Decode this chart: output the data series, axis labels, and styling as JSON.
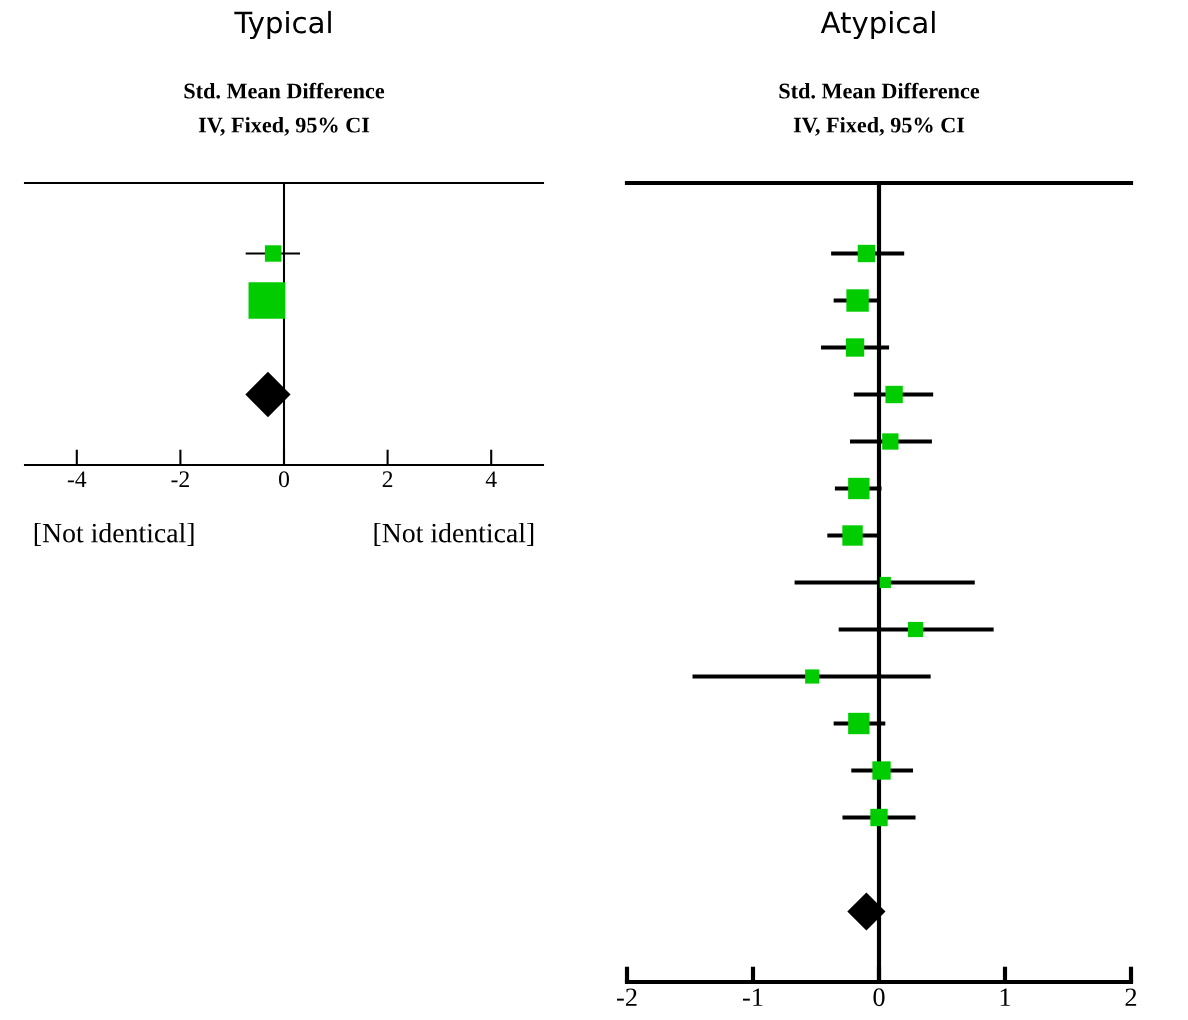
{
  "chart_data": [
    {
      "type": "scatter",
      "orientation": "horizontal",
      "title": "Typical",
      "subtitle": "Std. Mean Difference\nIV, Fixed, 95% CI",
      "categories": [
        null,
        null,
        null,
        null,
        null,
        null
      ],
      "xlim": [
        -5,
        5
      ],
      "xticks": [
        -4,
        -2,
        0,
        2,
        4
      ],
      "tick_labels": "x",
      "legend": false,
      "grid": false,
      "ref_lines": [
        {
          "axis": "x",
          "value": 0,
          "color": "#000000"
        }
      ],
      "annotations": [
        "[Not identical]",
        "[Not identical]"
      ],
      "series": [
        {
          "type": "bubble",
          "marker": "square",
          "color": "#00cc00",
          "values": [
            null,
            -0.21,
            -0.33,
            null,
            null,
            null
          ],
          "sizes": [
            null,
            0.2,
            1,
            null,
            null,
            null
          ],
          "errors": [
            null,
            [
              -0.74,
              0.31
            ],
            null,
            null,
            null,
            null
          ]
        },
        {
          "marker": "diamond",
          "color": "#000000",
          "values": [
            null,
            null,
            null,
            null,
            -0.31,
            null
          ]
        }
      ]
    },
    {
      "type": "scatter",
      "orientation": "horizontal",
      "title": "Atypical",
      "subtitle": "Std. Mean Difference\nIV, Fixed, 95% CI",
      "categories": [
        null,
        null,
        null,
        null,
        null,
        null,
        null,
        null,
        null,
        null,
        null,
        null,
        null,
        null,
        null,
        null,
        null
      ],
      "xlim": [
        -2,
        2
      ],
      "xticks": [
        -2,
        -1,
        0,
        1,
        2
      ],
      "tick_labels": "x",
      "legend": false,
      "grid": false,
      "ref_lines": [
        {
          "axis": "x",
          "value": 0,
          "color": "#000000"
        }
      ],
      "series": [
        {
          "type": "bubble",
          "marker": "square",
          "color": "#00cc00",
          "values": [
            null,
            -0.1,
            -0.17,
            -0.19,
            0.12,
            0.09,
            -0.16,
            -0.21,
            0.05,
            0.29,
            -0.53,
            -0.16,
            0.02,
            0.0,
            null,
            null,
            null
          ],
          "sizes": [
            null,
            0.6,
            1,
            0.67,
            0.6,
            0.53,
            0.91,
            0.83,
            0.25,
            0.46,
            0.4,
            0.91,
            0.67,
            0.6,
            null,
            null,
            null
          ],
          "errors": [
            null,
            [
              -0.38,
              0.2
            ],
            [
              -0.36,
              0.01
            ],
            [
              -0.46,
              0.08
            ],
            [
              -0.2,
              0.43
            ],
            [
              -0.23,
              0.42
            ],
            [
              -0.35,
              0.02
            ],
            [
              -0.41,
              -0.01
            ],
            [
              -0.67,
              0.76
            ],
            [
              -0.32,
              0.91
            ],
            [
              -1.48,
              0.41
            ],
            [
              -0.36,
              0.05
            ],
            [
              -0.22,
              0.27
            ],
            [
              -0.29,
              0.29
            ],
            null,
            null,
            null
          ]
        },
        {
          "marker": "diamond",
          "color": "#000000",
          "values": [
            null,
            null,
            null,
            null,
            null,
            null,
            null,
            null,
            null,
            null,
            null,
            null,
            null,
            null,
            null,
            -0.1,
            null
          ]
        }
      ]
    }
  ]
}
